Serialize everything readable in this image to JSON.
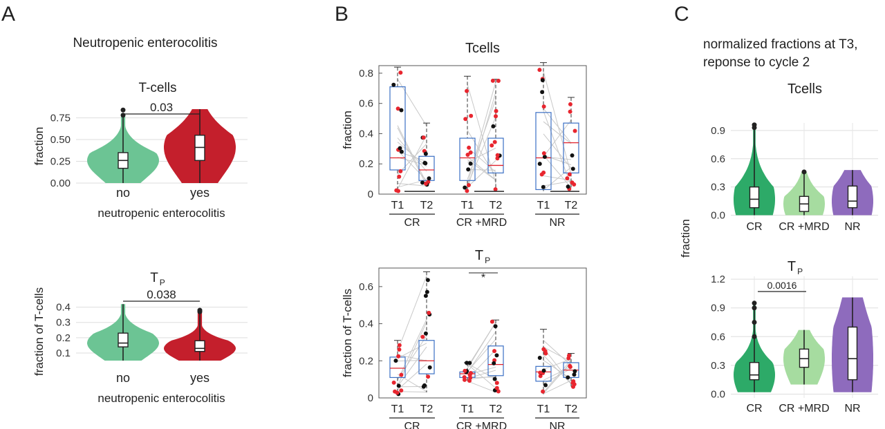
{
  "panels": {
    "A": {
      "letter": "A",
      "heading": "Neutropenic enterocolitis",
      "colors": {
        "no": "#6cc494",
        "yes": "#c41f2c"
      },
      "charts": [
        {
          "type": "violin",
          "title": "T-cells",
          "title_sub": "",
          "ylabel": "fraction",
          "xlabel": "neutropenic enterocolitis",
          "categories": [
            "no",
            "yes"
          ],
          "ylim": [
            0,
            0.85
          ],
          "yticks": [
            "0.00",
            "0.25",
            "0.50",
            "0.75"
          ],
          "ytick_values": [
            0,
            0.25,
            0.5,
            0.75
          ],
          "pvalue": "0.03",
          "box": [
            {
              "q1": 0.17,
              "median": 0.26,
              "q3": 0.35,
              "min": 0.0,
              "max": 0.8
            },
            {
              "q1": 0.26,
              "median": 0.41,
              "q3": 0.55,
              "min": 0.0,
              "max": 0.85
            }
          ],
          "outliers": [
            [
              0.78,
              0.84
            ],
            []
          ]
        },
        {
          "type": "violin",
          "title": "T",
          "title_sub": "P",
          "ylabel": "fraction of  T-cells",
          "xlabel": "neutropenic enterocolitis",
          "categories": [
            "no",
            "yes"
          ],
          "ylim": [
            0.05,
            0.43
          ],
          "yticks": [
            "0.1",
            "0.2",
            "0.3",
            "0.4"
          ],
          "ytick_values": [
            0.1,
            0.2,
            0.3,
            0.4
          ],
          "pvalue": "0.038",
          "box": [
            {
              "q1": 0.14,
              "median": 0.165,
              "q3": 0.23,
              "min": 0.05,
              "max": 0.42
            },
            {
              "q1": 0.11,
              "median": 0.13,
              "q3": 0.18,
              "min": 0.05,
              "max": 0.38
            }
          ],
          "outliers": [
            [],
            [
              0.38,
              0.37
            ]
          ]
        }
      ]
    },
    "B": {
      "letter": "B",
      "groups": [
        "CR",
        "CR +MRD",
        "NR"
      ],
      "timepoints": [
        "T1",
        "T2"
      ],
      "charts": [
        {
          "type": "box-paired",
          "title": "Tcells",
          "title_sub": "",
          "ylabel": "fraction",
          "ylim": [
            0,
            0.85
          ],
          "yticks": [
            "0",
            "0.2",
            "0.4",
            "0.6",
            "0.8"
          ],
          "ytick_values": [
            0,
            0.2,
            0.4,
            0.6,
            0.8
          ],
          "annotation": "",
          "boxes": [
            {
              "q1": 0.16,
              "median": 0.24,
              "q3": 0.71,
              "min": 0.02,
              "max": 0.84
            },
            {
              "q1": 0.09,
              "median": 0.16,
              "q3": 0.25,
              "min": 0.05,
              "max": 0.47
            },
            {
              "q1": 0.09,
              "median": 0.24,
              "q3": 0.37,
              "min": 0.02,
              "max": 0.78
            },
            {
              "q1": 0.14,
              "median": 0.19,
              "q3": 0.37,
              "min": 0.02,
              "max": 0.76
            },
            {
              "q1": 0.03,
              "median": 0.24,
              "q3": 0.54,
              "min": 0.02,
              "max": 0.87
            },
            {
              "q1": 0.14,
              "median": 0.34,
              "q3": 0.47,
              "min": 0.03,
              "max": 0.64
            }
          ]
        },
        {
          "type": "box-paired",
          "title": "T",
          "title_sub": "P",
          "ylabel": "fraction of  T-cells",
          "ylim": [
            0,
            0.7
          ],
          "yticks": [
            "0",
            "0.2",
            "0.4",
            "0.6"
          ],
          "ytick_values": [
            0,
            0.2,
            0.4,
            0.6
          ],
          "annotation": "*",
          "boxes": [
            {
              "q1": 0.11,
              "median": 0.16,
              "q3": 0.22,
              "min": 0.02,
              "max": 0.31
            },
            {
              "q1": 0.13,
              "median": 0.2,
              "q3": 0.31,
              "min": 0.03,
              "max": 0.68
            },
            {
              "q1": 0.11,
              "median": 0.13,
              "q3": 0.14,
              "min": 0.09,
              "max": 0.19
            },
            {
              "q1": 0.12,
              "median": 0.18,
              "q3": 0.28,
              "min": 0.03,
              "max": 0.42
            },
            {
              "q1": 0.09,
              "median": 0.14,
              "q3": 0.17,
              "min": 0.02,
              "max": 0.37
            },
            {
              "q1": 0.11,
              "median": 0.15,
              "q3": 0.19,
              "min": 0.06,
              "max": 0.24
            }
          ]
        }
      ]
    },
    "C": {
      "letter": "C",
      "heading_line1": "normalized fractions at T3,",
      "heading_line2": "reponse to cycle 2",
      "ylabel": "fraction",
      "categories": [
        "CR",
        "CR +MRD",
        "NR"
      ],
      "colors": {
        "CR": "#2daa68",
        "CR +MRD": "#a6dca0",
        "NR": "#8e6bbd"
      },
      "charts": [
        {
          "type": "violin",
          "title": "Tcells",
          "title_sub": "",
          "ylim": [
            -0.04,
            0.98
          ],
          "yticks": [
            "0.0",
            "0.3",
            "0.6",
            "0.9"
          ],
          "ytick_values": [
            0,
            0.3,
            0.6,
            0.9
          ],
          "pvalue": "",
          "box": [
            {
              "q1": 0.08,
              "median": 0.17,
              "q3": 0.3,
              "min": 0.0,
              "max": 0.93
            },
            {
              "q1": 0.04,
              "median": 0.12,
              "q3": 0.2,
              "min": 0.0,
              "max": 0.46
            },
            {
              "q1": 0.08,
              "median": 0.15,
              "q3": 0.31,
              "min": 0.0,
              "max": 0.48
            }
          ],
          "outliers": [
            [
              0.93,
              0.96
            ],
            [
              0.46
            ],
            []
          ]
        },
        {
          "type": "violin",
          "title": "T",
          "title_sub": "P",
          "ylim": [
            -0.04,
            1.23
          ],
          "yticks": [
            "0.0",
            "0.3",
            "0.6",
            "0.9",
            "1.2"
          ],
          "ytick_values": [
            0,
            0.3,
            0.6,
            0.9,
            1.2
          ],
          "pvalue": "0.0016",
          "box": [
            {
              "q1": 0.15,
              "median": 0.2,
              "q3": 0.33,
              "min": 0.02,
              "max": 0.93
            },
            {
              "q1": 0.28,
              "median": 0.37,
              "q3": 0.47,
              "min": 0.1,
              "max": 0.67
            },
            {
              "q1": 0.15,
              "median": 0.37,
              "q3": 0.7,
              "min": 0.02,
              "max": 1.01
            }
          ],
          "outliers": [
            [
              0.6,
              0.75,
              0.9,
              0.95
            ],
            [],
            []
          ]
        }
      ]
    }
  }
}
